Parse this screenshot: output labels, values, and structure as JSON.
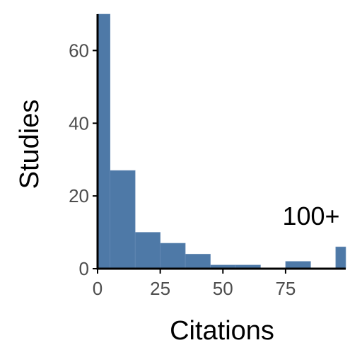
{
  "chart_data": {
    "type": "bar",
    "variant": "histogram",
    "bin_width": 10,
    "bins": [
      {
        "start": -5,
        "end": 5,
        "count": 70
      },
      {
        "start": 5,
        "end": 15,
        "count": 27
      },
      {
        "start": 15,
        "end": 25,
        "count": 10
      },
      {
        "start": 25,
        "end": 35,
        "count": 7
      },
      {
        "start": 35,
        "end": 45,
        "count": 4
      },
      {
        "start": 45,
        "end": 55,
        "count": 1
      },
      {
        "start": 55,
        "end": 65,
        "count": 1
      },
      {
        "start": 65,
        "end": 75,
        "count": 0
      },
      {
        "start": 75,
        "end": 85,
        "count": 2
      },
      {
        "start": 85,
        "end": 95,
        "count": 0
      },
      {
        "start": 95,
        "end": 105,
        "count": 6
      }
    ],
    "xlabel": "Citations",
    "ylabel": "Studies",
    "xlim": [
      0,
      99
    ],
    "ylim": [
      0,
      70
    ],
    "xticks": [
      0,
      25,
      50,
      75
    ],
    "yticks": [
      0,
      20,
      40,
      60
    ],
    "annotation": "100+",
    "grid": false,
    "legend": "none",
    "bar_color": "#4e79a7"
  }
}
